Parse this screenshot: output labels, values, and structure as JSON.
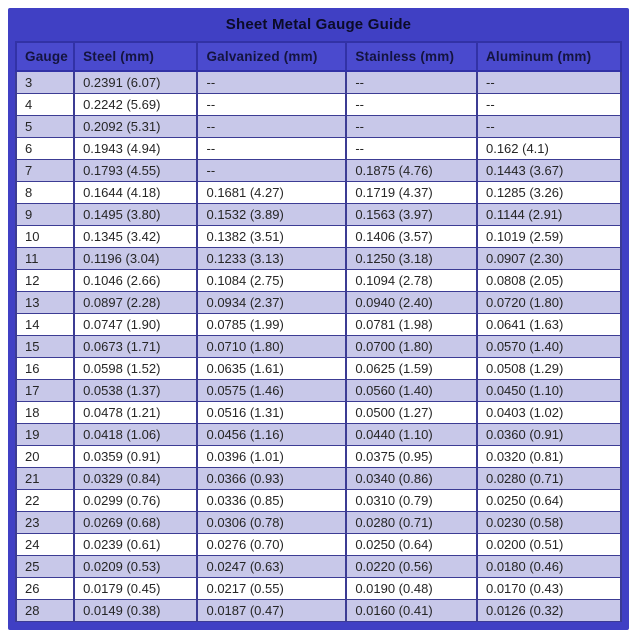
{
  "chart_data": {
    "type": "table",
    "title": "Sheet Metal Gauge Guide",
    "columns": [
      "Gauge",
      "Steel (mm)",
      "Galvanized (mm)",
      "Stainless (mm)",
      "Aluminum (mm)"
    ],
    "rows": [
      [
        "3",
        "0.2391 (6.07)",
        "--",
        "--",
        "--"
      ],
      [
        "4",
        "0.2242 (5.69)",
        "--",
        "--",
        "--"
      ],
      [
        "5",
        "0.2092 (5.31)",
        "--",
        "--",
        "--"
      ],
      [
        "6",
        "0.1943 (4.94)",
        "--",
        "--",
        "0.162 (4.1)"
      ],
      [
        "7",
        "0.1793 (4.55)",
        "--",
        "0.1875 (4.76)",
        "0.1443 (3.67)"
      ],
      [
        "8",
        "0.1644 (4.18)",
        "0.1681 (4.27)",
        "0.1719 (4.37)",
        "0.1285 (3.26)"
      ],
      [
        "9",
        "0.1495 (3.80)",
        "0.1532 (3.89)",
        "0.1563 (3.97)",
        "0.1144 (2.91)"
      ],
      [
        "10",
        "0.1345 (3.42)",
        "0.1382 (3.51)",
        "0.1406 (3.57)",
        "0.1019 (2.59)"
      ],
      [
        "11",
        "0.1196 (3.04)",
        "0.1233 (3.13)",
        "0.1250 (3.18)",
        "0.0907 (2.30)"
      ],
      [
        "12",
        "0.1046 (2.66)",
        "0.1084 (2.75)",
        "0.1094 (2.78)",
        "0.0808 (2.05)"
      ],
      [
        "13",
        "0.0897 (2.28)",
        "0.0934 (2.37)",
        "0.0940 (2.40)",
        "0.0720 (1.80)"
      ],
      [
        "14",
        "0.0747 (1.90)",
        "0.0785 (1.99)",
        "0.0781 (1.98)",
        "0.0641 (1.63)"
      ],
      [
        "15",
        "0.0673 (1.71)",
        "0.0710 (1.80)",
        "0.0700 (1.80)",
        "0.0570 (1.40)"
      ],
      [
        "16",
        "0.0598 (1.52)",
        "0.0635 (1.61)",
        "0.0625 (1.59)",
        "0.0508 (1.29)"
      ],
      [
        "17",
        "0.0538 (1.37)",
        "0.0575 (1.46)",
        "0.0560 (1.40)",
        "0.0450 (1.10)"
      ],
      [
        "18",
        "0.0478 (1.21)",
        "0.0516 (1.31)",
        "0.0500 (1.27)",
        "0.0403 (1.02)"
      ],
      [
        "19",
        "0.0418 (1.06)",
        "0.0456 (1.16)",
        "0.0440 (1.10)",
        "0.0360 (0.91)"
      ],
      [
        "20",
        "0.0359 (0.91)",
        "0.0396 (1.01)",
        "0.0375 (0.95)",
        "0.0320 (0.81)"
      ],
      [
        "21",
        "0.0329 (0.84)",
        "0.0366 (0.93)",
        "0.0340 (0.86)",
        "0.0280 (0.71)"
      ],
      [
        "22",
        "0.0299 (0.76)",
        "0.0336 (0.85)",
        "0.0310 (0.79)",
        "0.0250 (0.64)"
      ],
      [
        "23",
        "0.0269 (0.68)",
        "0.0306 (0.78)",
        "0.0280 (0.71)",
        "0.0230 (0.58)"
      ],
      [
        "24",
        "0.0239 (0.61)",
        "0.0276 (0.70)",
        "0.0250 (0.64)",
        "0.0200 (0.51)"
      ],
      [
        "25",
        "0.0209 (0.53)",
        "0.0247 (0.63)",
        "0.0220 (0.56)",
        "0.0180 (0.46)"
      ],
      [
        "26",
        "0.0179 (0.45)",
        "0.0217 (0.55)",
        "0.0190 (0.48)",
        "0.0170 (0.43)"
      ],
      [
        "28",
        "0.0149 (0.38)",
        "0.0187 (0.47)",
        "0.0160 (0.41)",
        "0.0126 (0.32)"
      ]
    ],
    "layout": {
      "legend": "none",
      "grid": "full cell borders",
      "row_striping": "alternating lavender/white starting lavender"
    }
  },
  "colors": {
    "frame_blue": "#4040c4",
    "header_cell_bg": "#4a4ace",
    "header_text": "#14143f",
    "title_text": "#0b0b28",
    "row_alt_lavender": "#c8c8e9",
    "row_white": "#ffffff",
    "cell_border": "#3c3c94",
    "data_text": "#262626"
  }
}
